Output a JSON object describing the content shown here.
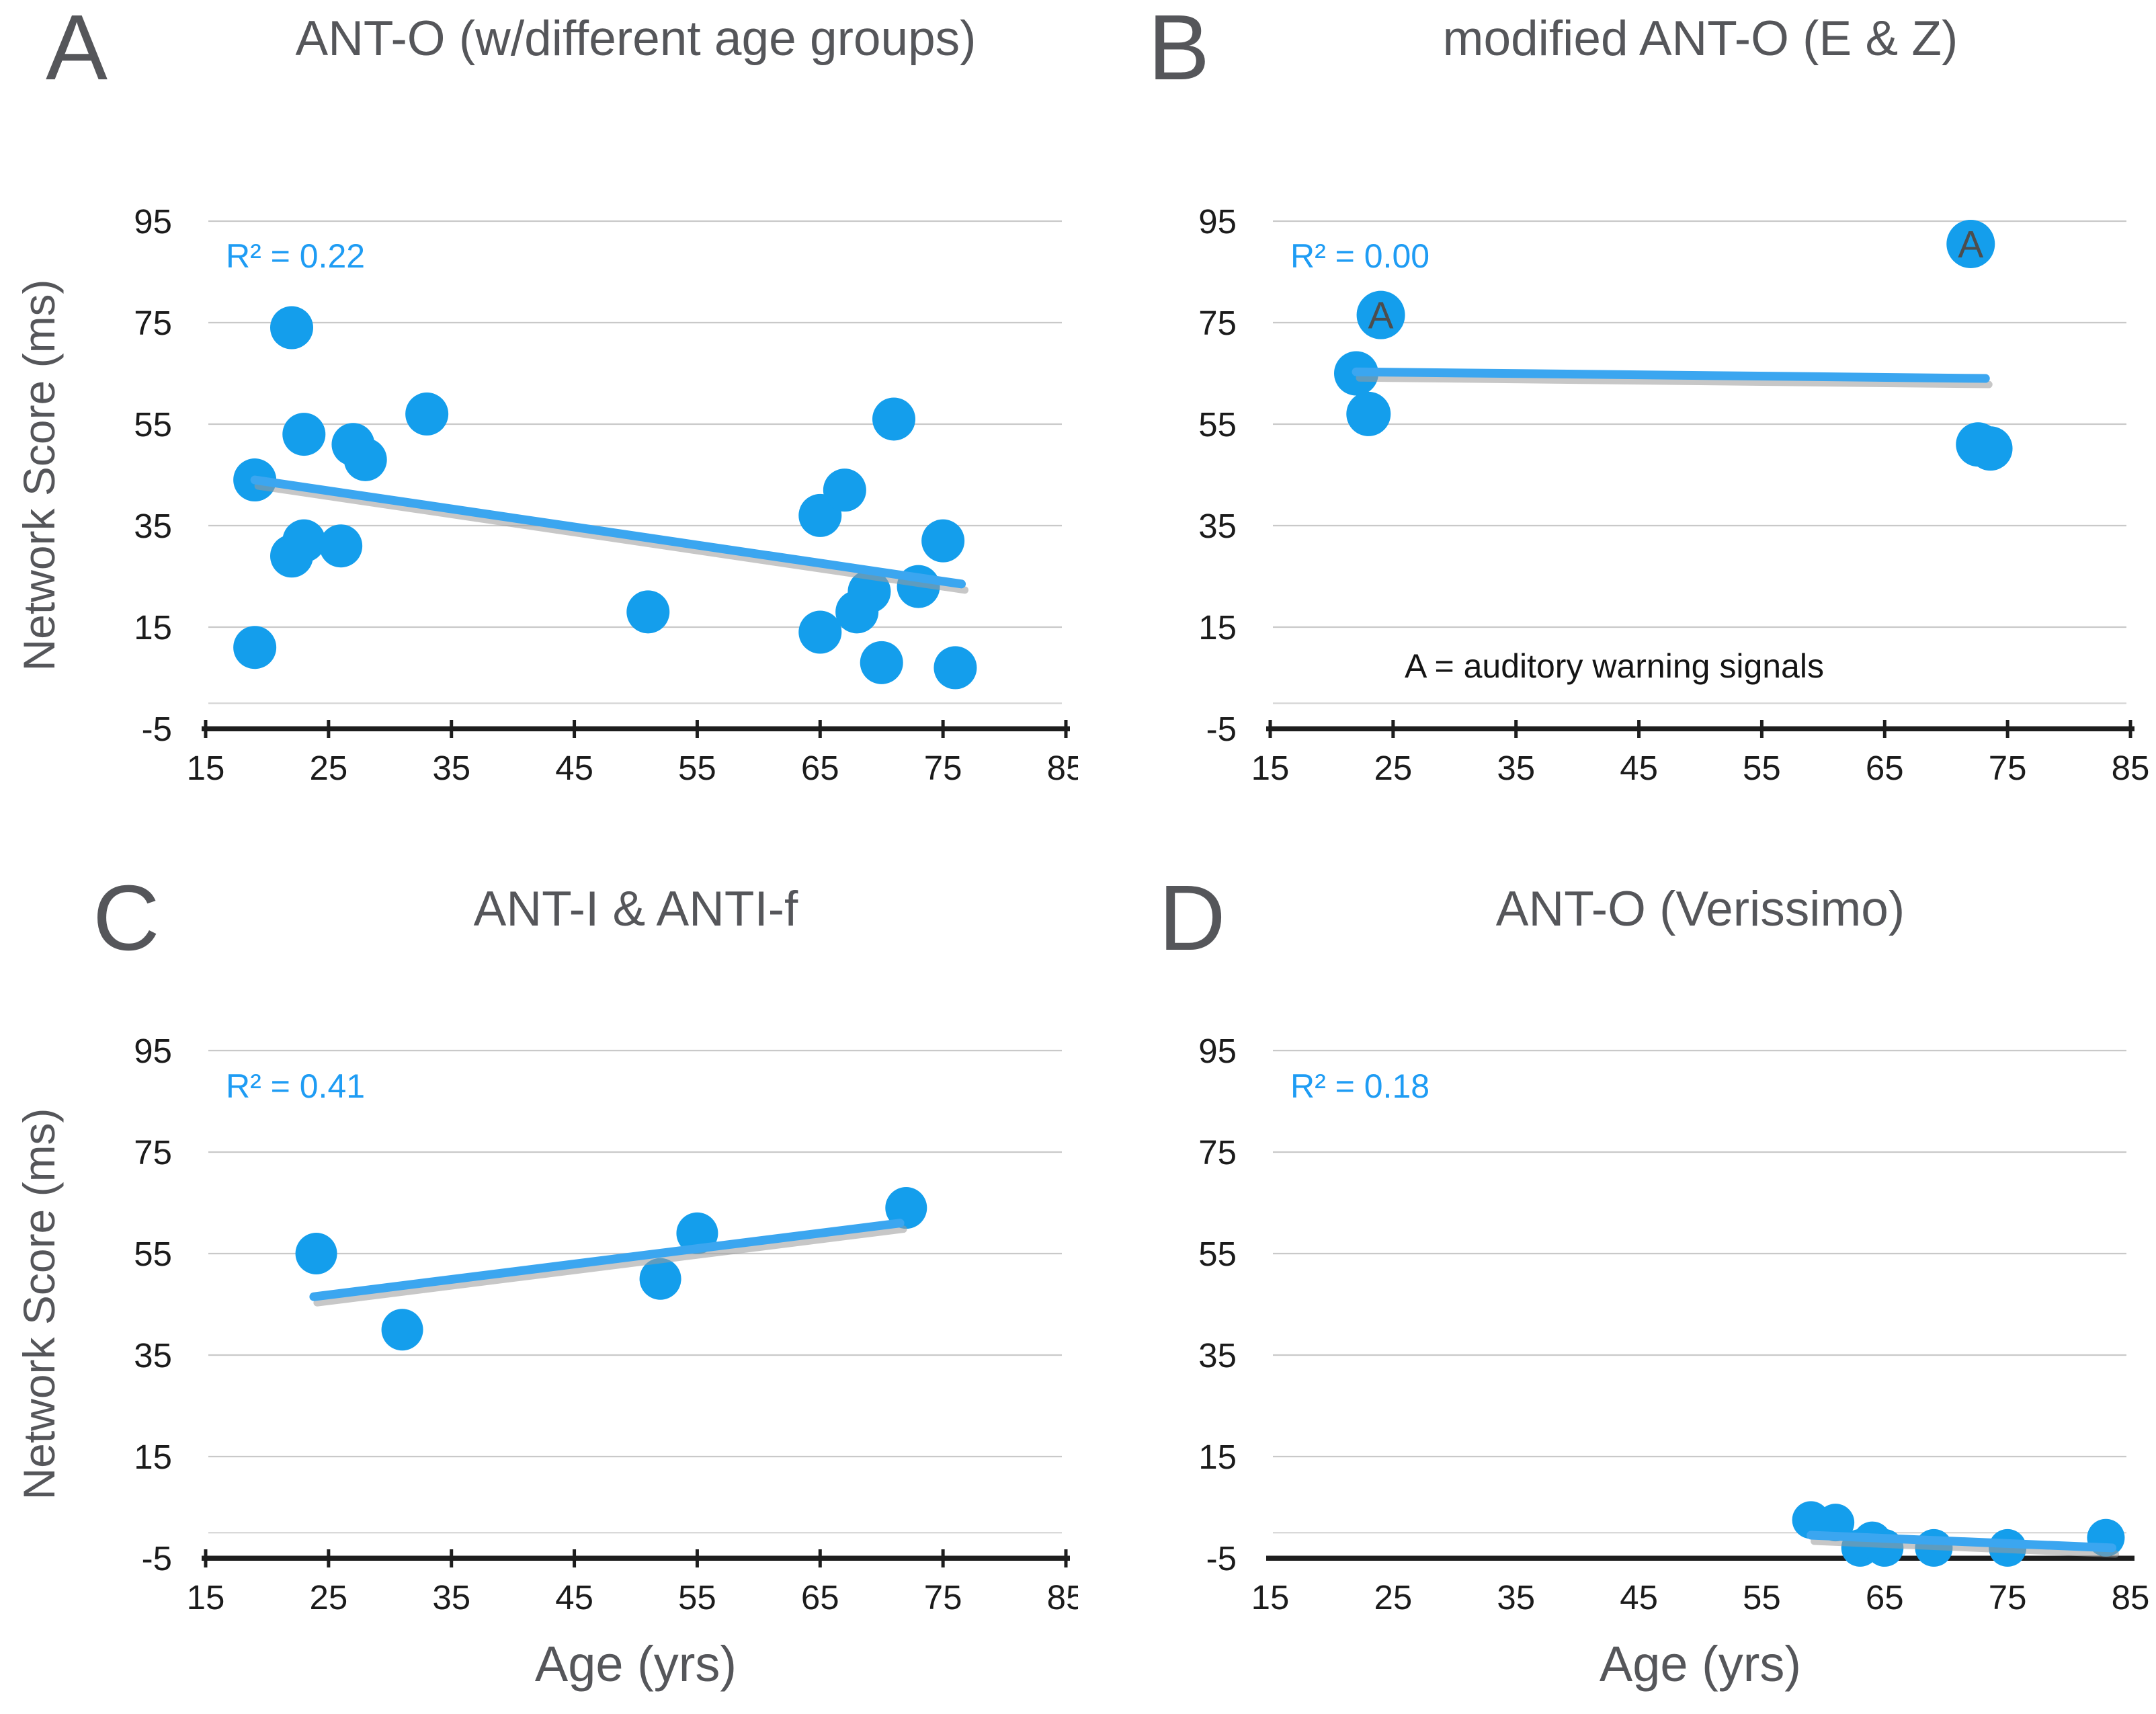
{
  "figure": {
    "background": "#ffffff",
    "y_axis_title": "Network Score (ms)",
    "x_axis_title": "Age (yrs)"
  },
  "colors": {
    "point": "#149eec",
    "trend_line": "#3ba6f0",
    "trend_shadow": "#9b9b9b",
    "r2_text": "#1e9cf4",
    "heading_gray": "#55565a",
    "tick_text": "#1b1b1b",
    "gridline": "#c9c9c9",
    "zero_line": "#d6d6d6",
    "axis_black": "#1d1d1d",
    "point_label": "#4d4d4d"
  },
  "axes": {
    "x_min": 15,
    "x_max": 85,
    "y_min": -5,
    "y_max": 95,
    "x_ticks": [
      15,
      25,
      35,
      45,
      55,
      65,
      75,
      85
    ],
    "y_ticks": [
      95,
      75,
      55,
      35,
      15,
      -5
    ],
    "grid_y_values": [
      95,
      75,
      55,
      35,
      15
    ],
    "zero_line_y": 0
  },
  "chart_data": [
    {
      "type": "scatter",
      "letter": "A",
      "title": "ANT-O (w/different age groups)",
      "r2_label": "R² = 0.22",
      "r2_value": 0.22,
      "ylabel": "Network Score (ms)",
      "x_axis_ticks": true,
      "points": [
        [
          22,
          74
        ],
        [
          23,
          53
        ],
        [
          27,
          51
        ],
        [
          28,
          48
        ],
        [
          33,
          57
        ],
        [
          19,
          44
        ],
        [
          23,
          32
        ],
        [
          22,
          29
        ],
        [
          26,
          31
        ],
        [
          19,
          11
        ],
        [
          51,
          18
        ],
        [
          65,
          37
        ],
        [
          67,
          42
        ],
        [
          71,
          56
        ],
        [
          75,
          32
        ],
        [
          73,
          23
        ],
        [
          69,
          22
        ],
        [
          68,
          18
        ],
        [
          65,
          14
        ],
        [
          70,
          8
        ],
        [
          76,
          7
        ]
      ],
      "trend": {
        "x1": 19,
        "y1": 44,
        "x2": 76.5,
        "y2": 23.5
      }
    },
    {
      "type": "scatter",
      "letter": "B",
      "title": "modified ANT-O (E & Z)",
      "r2_label": "R² = 0.00",
      "r2_value": 0.0,
      "annotation": "A = auditory warning signals",
      "x_axis_ticks": true,
      "points": [
        [
          24,
          76.5,
          "A"
        ],
        [
          22,
          65
        ],
        [
          23,
          57
        ],
        [
          72,
          90.5,
          "A"
        ],
        [
          72.6,
          51
        ],
        [
          73.6,
          50.2
        ]
      ],
      "trend": {
        "x1": 22,
        "y1": 65.3,
        "x2": 73.2,
        "y2": 64
      }
    },
    {
      "type": "scatter",
      "letter": "C",
      "title": "ANT-I & ANTI-f",
      "r2_label": "R² = 0.41",
      "r2_value": 0.41,
      "ylabel": "Network Score (ms)",
      "xlabel": "Age (yrs)",
      "x_axis_ticks": true,
      "points": [
        [
          24,
          55
        ],
        [
          31,
          40
        ],
        [
          52,
          50
        ],
        [
          55,
          59
        ],
        [
          72,
          64
        ]
      ],
      "trend": {
        "x1": 23.8,
        "y1": 46.5,
        "x2": 71.5,
        "y2": 61
      }
    },
    {
      "type": "scatter",
      "letter": "D",
      "title": "ANT-O (Verissimo)",
      "r2_label": "R² = 0.18",
      "r2_value": 0.18,
      "xlabel": "Age (yrs)",
      "x_axis_ticks": false,
      "points": [
        [
          59,
          2.5
        ],
        [
          61,
          2
        ],
        [
          63,
          -3
        ],
        [
          64,
          -1.5
        ],
        [
          65,
          -3
        ],
        [
          69,
          -3
        ],
        [
          75,
          -3
        ],
        [
          83,
          -1
        ]
      ],
      "trend": {
        "x1": 59,
        "y1": -0.5,
        "x2": 83.5,
        "y2": -3
      }
    }
  ]
}
